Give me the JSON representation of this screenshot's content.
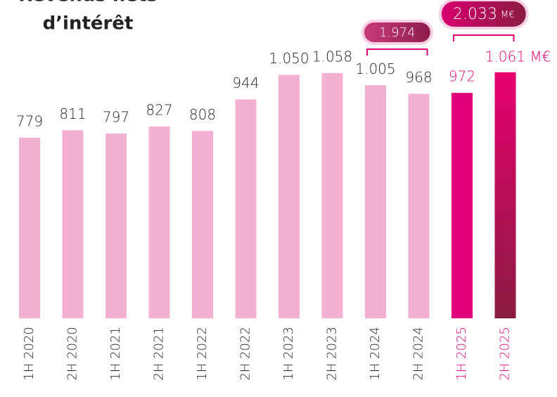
{
  "chart_data": {
    "type": "bar",
    "title": [
      "Revenus nets",
      "d’intérêt"
    ],
    "categories": [
      "1H 2020",
      "2H 2020",
      "1H 2021",
      "2H 2021",
      "1H 2022",
      "2H 2022",
      "1H 2023",
      "2H 2023",
      "1H 2024",
      "2H 2024",
      "1H 2025",
      "2H 2025"
    ],
    "values": [
      779,
      811,
      797,
      827,
      808,
      944,
      1050,
      1058,
      1005,
      968,
      972,
      1061
    ],
    "value_labels": [
      "779",
      "811",
      "797",
      "827",
      "808",
      "944",
      "1.050",
      "1.058",
      "1.005",
      "968",
      "972",
      "1.061 M€"
    ],
    "colors": [
      "#f4b0d3",
      "#f4b0d3",
      "#f4b0d3",
      "#f4b0d3",
      "#f4b0d3",
      "#f4b0d3",
      "#f4b0d3",
      "#f4b0d3",
      "#f4b0d3",
      "#f4b0d3",
      "#e0007a",
      [
        "#e8006f",
        "#8a1c40"
      ]
    ],
    "label_colors": [
      "#222222",
      "#222222",
      "#222222",
      "#222222",
      "#222222",
      "#222222",
      "#222222",
      "#222222",
      "#222222",
      "#222222",
      "#e0007a",
      "#e0007a"
    ],
    "annotations": [
      {
        "value": 1974,
        "label": "1.974"
      },
      {
        "value": 2033,
        "label": "2.033",
        "unit": "M€"
      }
    ]
  }
}
